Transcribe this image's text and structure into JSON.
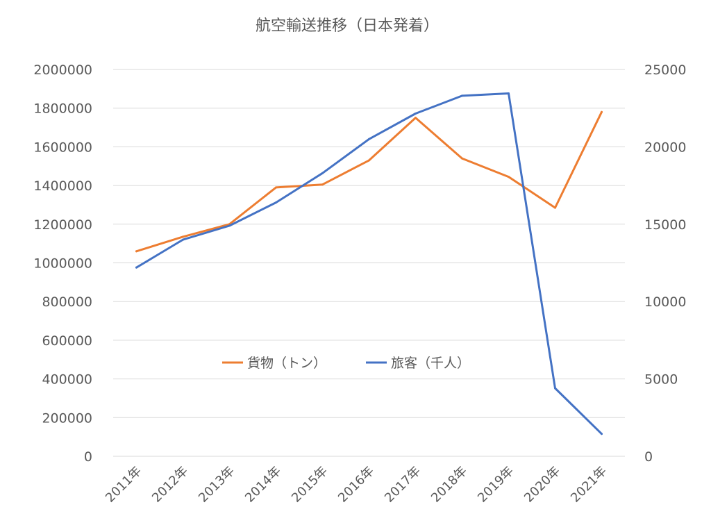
{
  "colors": {
    "cargo": "#ED7D31",
    "passengers": "#4472C4",
    "grid": "#d9d9d9",
    "text": "#595959"
  },
  "chart_data": {
    "type": "line",
    "title": "航空輸送推移（日本発着）",
    "categories": [
      "2011年",
      "2012年",
      "2013年",
      "2014年",
      "2015年",
      "2016年",
      "2017年",
      "2018年",
      "2019年",
      "2020年",
      "2021年"
    ],
    "series": [
      {
        "name": "貨物（トン）",
        "axis": "left",
        "color": "#ED7D31",
        "values": [
          1060000,
          1135000,
          1200000,
          1390000,
          1405000,
          1530000,
          1750000,
          1540000,
          1445000,
          1285000,
          1780000
        ]
      },
      {
        "name": "旅客（千人）",
        "axis": "right",
        "color": "#4472C4",
        "values": [
          12200,
          14000,
          14900,
          16400,
          18300,
          20500,
          22150,
          23300,
          23450,
          4400,
          1450
        ]
      }
    ],
    "y_left": {
      "ylim": [
        0,
        2000000
      ],
      "ticks": [
        "0",
        "200000",
        "400000",
        "600000",
        "800000",
        "1000000",
        "1200000",
        "1400000",
        "1600000",
        "1800000",
        "2000000"
      ]
    },
    "y_right": {
      "ylim": [
        0,
        25000
      ],
      "ticks": [
        "0",
        "5000",
        "10000",
        "15000",
        "20000",
        "25000"
      ]
    },
    "grid": true,
    "legend": "center, inside plot"
  }
}
